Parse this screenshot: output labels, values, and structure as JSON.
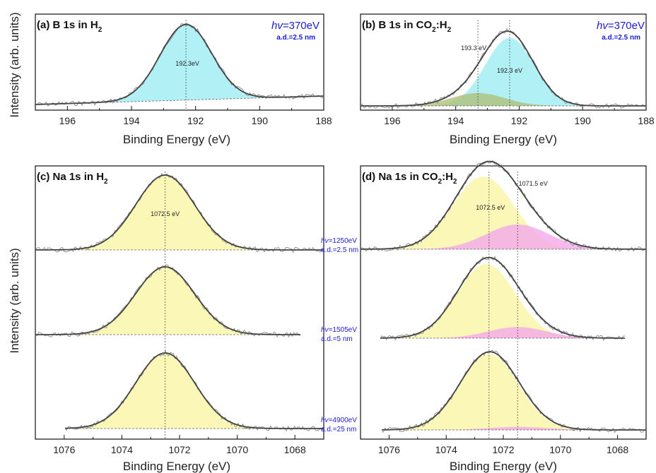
{
  "figure": {
    "ylabel": "Intensity  (arb. units)",
    "xlabel": "Binding Energy (eV)",
    "hv_label": "hv",
    "colors": {
      "frame": "#111111",
      "raw": "#8a8a8a",
      "fit": "#444444",
      "cyan_fill": "#a8eef4",
      "olive_fill": "#b0c07a",
      "yellow_fill": "#fbf6ae",
      "magenta_fill": "#f4a8ec",
      "annotation_blue": "#1a1ad6"
    }
  },
  "panels": {
    "a": {
      "title_plain": "(a) B 1s in H",
      "title_sub": "2",
      "title_rest": "",
      "hv_value": "=370eV",
      "ad": "a.d.=2.5 nm",
      "peak_labels": [
        "192.3eV"
      ]
    },
    "b": {
      "title_plain": "(b) B 1s in CO",
      "title_sub": "2",
      "title_rest": ":H",
      "title_sub2": "2",
      "hv_value": "=370eV",
      "ad": "a.d.=2.5 nm",
      "peak_labels": [
        "193.3 eV",
        "192.3 eV"
      ]
    },
    "c": {
      "title_plain": "(c) Na 1s in H",
      "title_sub": "2",
      "title_rest": "",
      "peak_labels": [
        "1072.5 eV"
      ]
    },
    "d": {
      "title_plain": "(d) Na 1s in CO",
      "title_sub": "2",
      "title_rest": ":H",
      "title_sub2": "2",
      "peak_labels": [
        "1072.5 eV",
        "1071.5 eV"
      ]
    }
  },
  "middle_annotations": [
    {
      "hv": "=1250eV",
      "ad": "a.d.=2.5 nm"
    },
    {
      "hv": "=1505eV",
      "ad": "a.d.=5 nm"
    },
    {
      "hv": "=4900eV",
      "ad": "a.d.=25 nm"
    }
  ],
  "chart_data": [
    {
      "id": "a",
      "type": "area",
      "title": "(a) B 1s in H2",
      "xlabel": "Binding Energy (eV)",
      "ylabel": "Intensity  (arb. units)",
      "xlim": [
        197,
        188
      ],
      "x_reversed": true,
      "xticks": [
        196,
        194,
        192,
        190,
        188
      ],
      "grid": false,
      "series": [
        {
          "center": 192.3,
          "fwhm": 1.9,
          "height": 1.0
        }
      ],
      "peak_markers": [
        192.3
      ]
    },
    {
      "id": "b",
      "type": "area",
      "title": "(b) B 1s in CO2:H2",
      "xlabel": "Binding Energy (eV)",
      "ylabel": "Intensity  (arb. units)",
      "xlim": [
        197,
        188
      ],
      "x_reversed": true,
      "xticks": [
        196,
        194,
        192,
        190,
        188
      ],
      "grid": false,
      "series": [
        {
          "center": 192.3,
          "fwhm": 1.8,
          "height": 0.9
        },
        {
          "center": 193.3,
          "fwhm": 2.0,
          "height": 0.17
        }
      ],
      "peak_markers": [
        193.3,
        192.3
      ]
    },
    {
      "id": "c",
      "type": "area",
      "title": "(c) Na 1s in H2",
      "xlabel": "Binding Energy (eV)",
      "ylabel": "Intensity  (arb. units)",
      "xlim": [
        1077,
        1067
      ],
      "x_reversed": true,
      "xticks": [
        1076,
        1074,
        1072,
        1070,
        1068
      ],
      "grid": false,
      "spectra": [
        {
          "label": "hv=1250eV, a.d.=2.5 nm",
          "components": [
            {
              "center": 1072.5,
              "fwhm": 2.4,
              "height": 1.0
            }
          ]
        },
        {
          "label": "hv=1505eV, a.d.=5 nm",
          "components": [
            {
              "center": 1072.5,
              "fwhm": 2.4,
              "height": 1.0
            }
          ]
        },
        {
          "label": "hv=4900eV, a.d.=25 nm",
          "components": [
            {
              "center": 1072.5,
              "fwhm": 2.4,
              "height": 1.0
            }
          ]
        }
      ],
      "peak_markers": [
        1072.5
      ]
    },
    {
      "id": "d",
      "type": "area",
      "title": "(d) Na 1s in CO2:H2",
      "xlabel": "Binding Energy (eV)",
      "ylabel": "Intensity  (arb. units)",
      "xlim": [
        1077,
        1067
      ],
      "x_reversed": true,
      "xticks": [
        1076,
        1074,
        1072,
        1070,
        1068
      ],
      "grid": false,
      "spectra": [
        {
          "label": "hv=1250eV, a.d.=2.5 nm",
          "components": [
            {
              "center": 1072.7,
              "fwhm": 2.5,
              "height": 1.0
            },
            {
              "center": 1071.5,
              "fwhm": 2.6,
              "height": 0.34
            }
          ]
        },
        {
          "label": "hv=1505eV, a.d.=5 nm",
          "components": [
            {
              "center": 1072.6,
              "fwhm": 2.4,
              "height": 1.0
            },
            {
              "center": 1071.5,
              "fwhm": 2.4,
              "height": 0.15
            }
          ]
        },
        {
          "label": "hv=4900eV, a.d.=25 nm",
          "components": [
            {
              "center": 1072.5,
              "fwhm": 2.4,
              "height": 1.0
            },
            {
              "center": 1071.5,
              "fwhm": 2.4,
              "height": 0.04
            }
          ]
        }
      ],
      "peak_markers": [
        1072.5,
        1071.5
      ]
    }
  ]
}
